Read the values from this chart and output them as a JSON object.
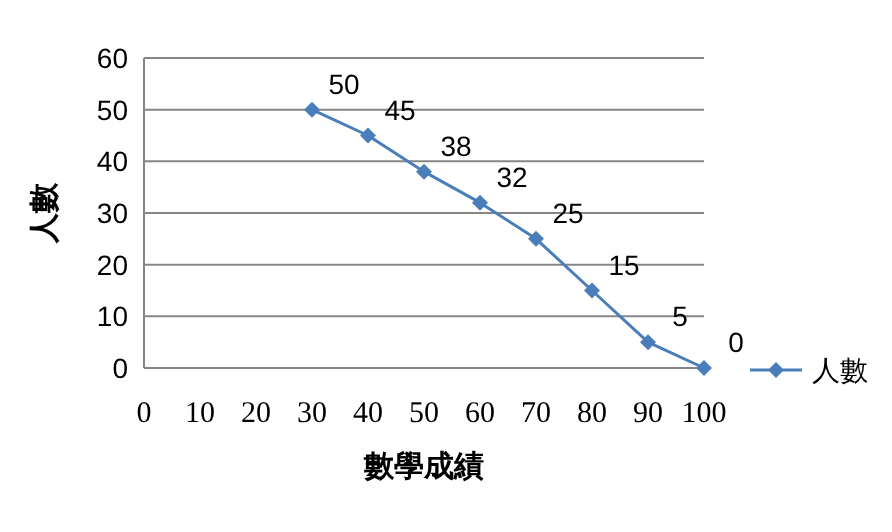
{
  "chart_data": {
    "type": "line",
    "xlabel": "數學成績",
    "ylabel": "人數",
    "x": [
      30,
      40,
      50,
      60,
      70,
      80,
      90,
      100
    ],
    "series": [
      {
        "name": "人數",
        "color": "#4a7ebb",
        "values": [
          50,
          45,
          38,
          32,
          25,
          15,
          5,
          0
        ]
      }
    ],
    "xlim": [
      0,
      100
    ],
    "xticks": [
      0,
      10,
      20,
      30,
      40,
      50,
      60,
      70,
      80,
      90,
      100
    ],
    "ylim": [
      0,
      60
    ],
    "yticks": [
      0,
      10,
      20,
      30,
      40,
      50,
      60
    ],
    "grid": "y",
    "legend": "right",
    "marker": "diamond",
    "data_labels": true
  }
}
